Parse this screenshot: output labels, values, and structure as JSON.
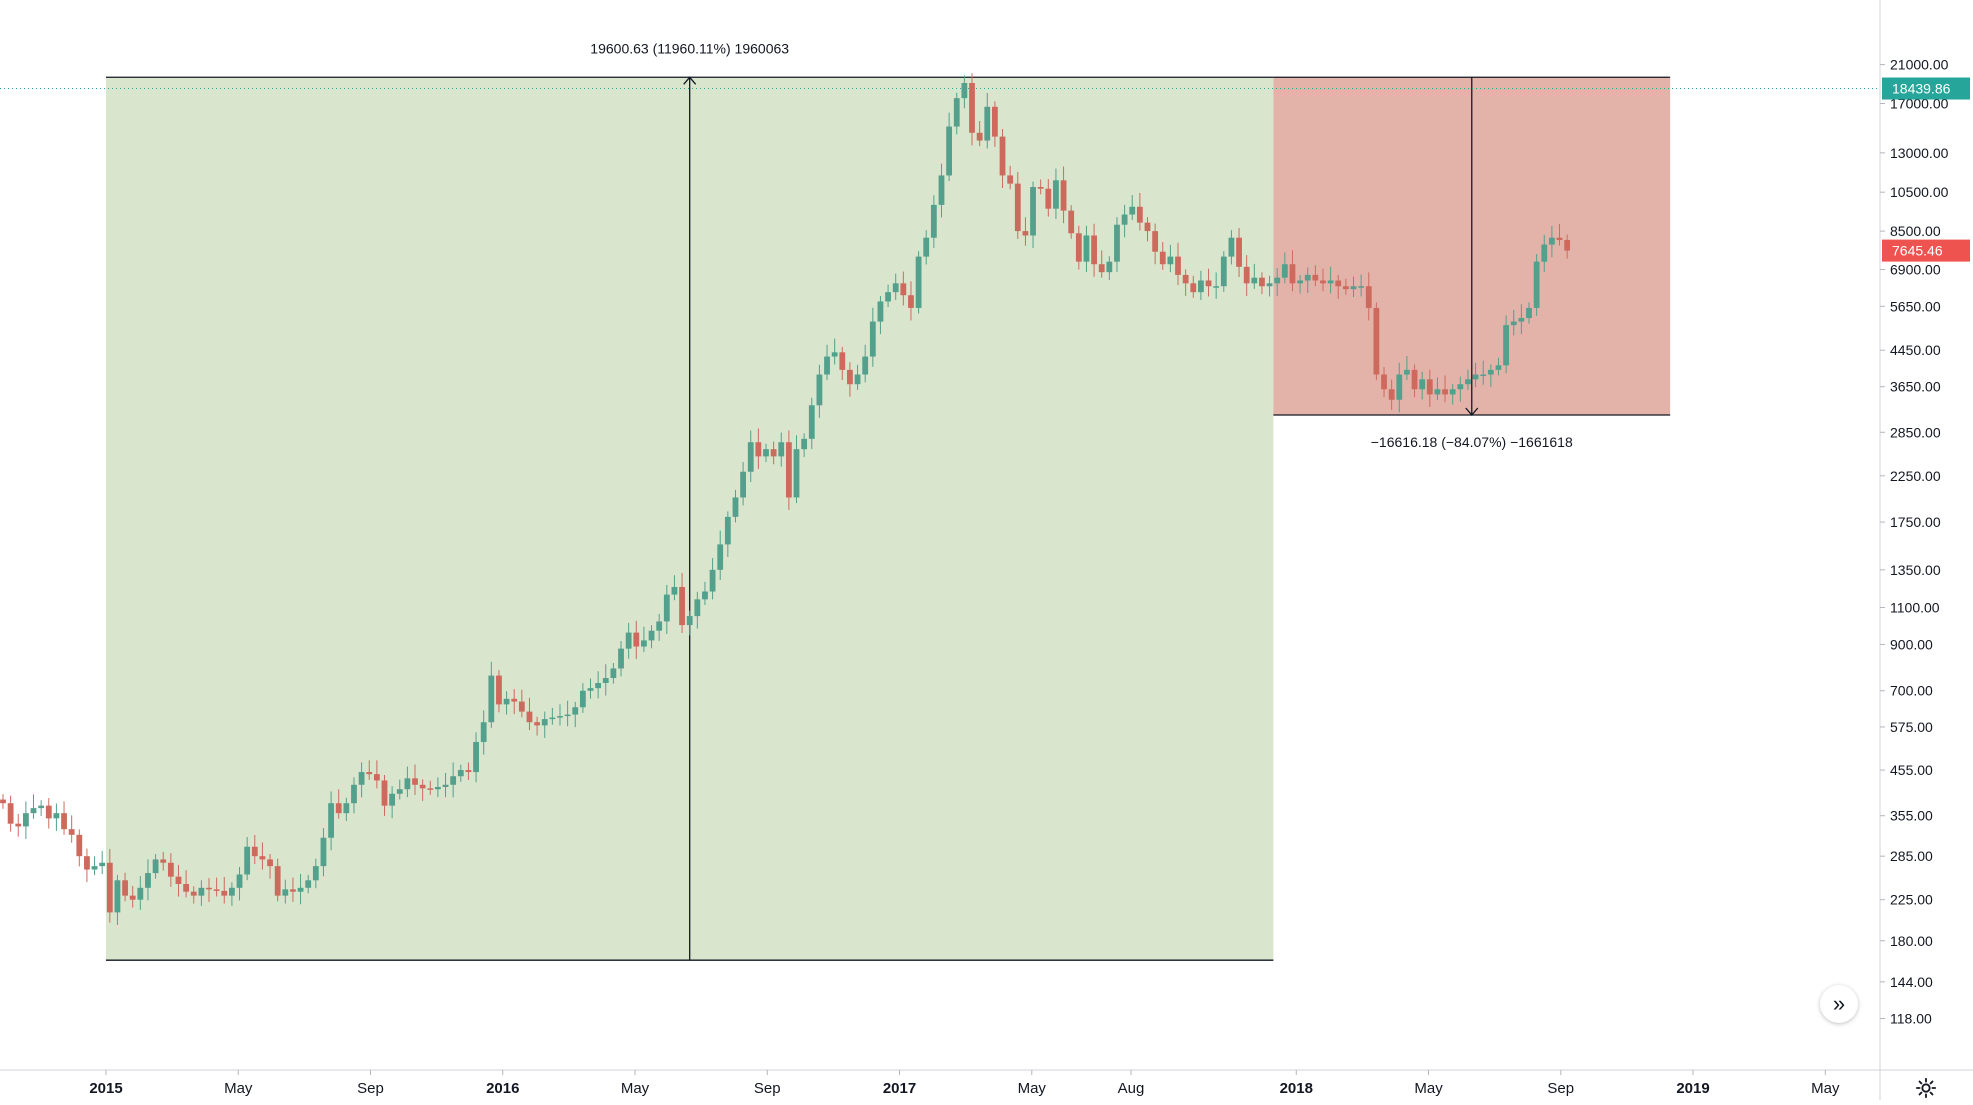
{
  "chart_data": {
    "type": "candlestick",
    "title": "",
    "xlabel": "",
    "ylabel": "",
    "y_scale": "log",
    "ylim": [
      105,
      24000
    ],
    "price_axis_ticks": [
      "21000.00",
      "17000.00",
      "13000.00",
      "10500.00",
      "8500.00",
      "6900.00",
      "5650.00",
      "4450.00",
      "3650.00",
      "2850.00",
      "2250.00",
      "1750.00",
      "1350.00",
      "1100.00",
      "900.00",
      "700.00",
      "575.00",
      "455.00",
      "355.00",
      "285.00",
      "225.00",
      "180.00",
      "144.00",
      "118.00"
    ],
    "time_axis": [
      {
        "label": "2015",
        "month": 0,
        "bold": true
      },
      {
        "label": "May",
        "month": 4,
        "bold": false
      },
      {
        "label": "Sep",
        "month": 8,
        "bold": false
      },
      {
        "label": "2016",
        "month": 12,
        "bold": true
      },
      {
        "label": "May",
        "month": 16,
        "bold": false
      },
      {
        "label": "Sep",
        "month": 20,
        "bold": false
      },
      {
        "label": "2017",
        "month": 24,
        "bold": true
      },
      {
        "label": "May",
        "month": 28,
        "bold": false
      },
      {
        "label": "Aug",
        "month": 31,
        "bold": false
      },
      {
        "label": "2018",
        "month": 36,
        "bold": true
      },
      {
        "label": "May",
        "month": 40,
        "bold": false
      },
      {
        "label": "Sep",
        "month": 44,
        "bold": false
      },
      {
        "label": "2019",
        "month": 48,
        "bold": true
      },
      {
        "label": "May",
        "month": 52,
        "bold": false
      }
    ],
    "current_price_line": {
      "price": 18439.86,
      "label": "18439.86",
      "color": "#26a69a"
    },
    "last_price_badge": {
      "price": 7645.46,
      "label": "7645.46",
      "color": "#ef5350"
    },
    "measurements": [
      {
        "name": "rise",
        "from_week": 0,
        "to_week": 153,
        "low": 162,
        "high": 19600,
        "label": "19600.63 (11960.11%) 1960063",
        "fill": "#d9e6cd",
        "direction": "up"
      },
      {
        "name": "fall",
        "from_week": 153,
        "to_week": 205,
        "low": 3130,
        "high": 19600,
        "label": "−16616.18 (−84.07%) −1661618",
        "fill": "#e3b3aa",
        "direction": "down"
      }
    ],
    "colors": {
      "up": "#53a08d",
      "down": "#ce6a5d",
      "up_bg": "#d9e6cd",
      "down_bg": "#e3b3aa"
    },
    "start_week_offset": -14,
    "weekly_closes": [
      [
        -14,
        380
      ],
      [
        -13,
        340
      ],
      [
        -12,
        335
      ],
      [
        -11,
        360
      ],
      [
        -10,
        370
      ],
      [
        -9,
        375
      ],
      [
        -8,
        350
      ],
      [
        -7,
        360
      ],
      [
        -6,
        330
      ],
      [
        -5,
        320
      ],
      [
        -4,
        285
      ],
      [
        -3,
        265
      ],
      [
        -2,
        270
      ],
      [
        -1,
        275
      ],
      [
        0,
        210
      ],
      [
        1,
        250
      ],
      [
        2,
        230
      ],
      [
        3,
        225
      ],
      [
        4,
        240
      ],
      [
        5,
        260
      ],
      [
        6,
        280
      ],
      [
        7,
        275
      ],
      [
        8,
        255
      ],
      [
        9,
        245
      ],
      [
        10,
        235
      ],
      [
        11,
        230
      ],
      [
        12,
        240
      ],
      [
        13,
        238
      ],
      [
        14,
        236
      ],
      [
        15,
        230
      ],
      [
        16,
        240
      ],
      [
        17,
        258
      ],
      [
        18,
        300
      ],
      [
        19,
        285
      ],
      [
        20,
        280
      ],
      [
        21,
        270
      ],
      [
        22,
        230
      ],
      [
        23,
        238
      ],
      [
        24,
        235
      ],
      [
        25,
        240
      ],
      [
        26,
        250
      ],
      [
        27,
        270
      ],
      [
        28,
        315
      ],
      [
        29,
        380
      ],
      [
        30,
        360
      ],
      [
        31,
        380
      ],
      [
        32,
        420
      ],
      [
        33,
        450
      ],
      [
        34,
        445
      ],
      [
        35,
        430
      ],
      [
        36,
        375
      ],
      [
        37,
        400
      ],
      [
        38,
        410
      ],
      [
        39,
        435
      ],
      [
        40,
        420
      ],
      [
        41,
        412
      ],
      [
        42,
        410
      ],
      [
        43,
        415
      ],
      [
        44,
        420
      ],
      [
        45,
        440
      ],
      [
        46,
        455
      ],
      [
        47,
        450
      ],
      [
        48,
        530
      ],
      [
        49,
        590
      ],
      [
        50,
        760
      ],
      [
        51,
        650
      ],
      [
        52,
        670
      ],
      [
        53,
        660
      ],
      [
        54,
        625
      ],
      [
        55,
        590
      ],
      [
        56,
        580
      ],
      [
        57,
        600
      ],
      [
        58,
        605
      ],
      [
        59,
        610
      ],
      [
        60,
        615
      ],
      [
        61,
        640
      ],
      [
        62,
        700
      ],
      [
        63,
        710
      ],
      [
        64,
        730
      ],
      [
        65,
        750
      ],
      [
        66,
        790
      ],
      [
        67,
        880
      ],
      [
        68,
        960
      ],
      [
        69,
        890
      ],
      [
        70,
        920
      ],
      [
        71,
        970
      ],
      [
        72,
        1020
      ],
      [
        73,
        1180
      ],
      [
        74,
        1230
      ],
      [
        75,
        1000
      ],
      [
        76,
        1050
      ],
      [
        77,
        1150
      ],
      [
        78,
        1200
      ],
      [
        79,
        1350
      ],
      [
        80,
        1550
      ],
      [
        81,
        1800
      ],
      [
        82,
        2000
      ],
      [
        83,
        2300
      ],
      [
        84,
        2700
      ],
      [
        85,
        2500
      ],
      [
        86,
        2600
      ],
      [
        87,
        2500
      ],
      [
        88,
        2700
      ],
      [
        89,
        2000
      ],
      [
        90,
        2600
      ],
      [
        91,
        2750
      ],
      [
        92,
        3300
      ],
      [
        93,
        3900
      ],
      [
        94,
        4300
      ],
      [
        95,
        4400
      ],
      [
        96,
        4000
      ],
      [
        97,
        3700
      ],
      [
        98,
        3900
      ],
      [
        99,
        4300
      ],
      [
        100,
        5200
      ],
      [
        101,
        5800
      ],
      [
        102,
        6100
      ],
      [
        103,
        6400
      ],
      [
        104,
        6000
      ],
      [
        105,
        5600
      ],
      [
        106,
        7400
      ],
      [
        107,
        8200
      ],
      [
        108,
        9800
      ],
      [
        109,
        11500
      ],
      [
        110,
        15000
      ],
      [
        111,
        17500
      ],
      [
        112,
        19000
      ],
      [
        113,
        14500
      ],
      [
        114,
        13900
      ],
      [
        115,
        16700
      ],
      [
        116,
        14200
      ],
      [
        117,
        11500
      ],
      [
        118,
        11000
      ],
      [
        119,
        8500
      ],
      [
        120,
        8300
      ],
      [
        121,
        10800
      ],
      [
        122,
        10700
      ],
      [
        123,
        9600
      ],
      [
        124,
        11200
      ],
      [
        125,
        9500
      ],
      [
        126,
        8400
      ],
      [
        127,
        7200
      ],
      [
        128,
        8300
      ],
      [
        129,
        7100
      ],
      [
        130,
        6800
      ],
      [
        131,
        7200
      ],
      [
        132,
        8800
      ],
      [
        133,
        9300
      ],
      [
        134,
        9700
      ],
      [
        135,
        8900
      ],
      [
        136,
        8500
      ],
      [
        137,
        7600
      ],
      [
        138,
        7100
      ],
      [
        139,
        7400
      ],
      [
        140,
        6700
      ],
      [
        141,
        6400
      ],
      [
        142,
        6100
      ],
      [
        143,
        6500
      ],
      [
        144,
        6300
      ],
      [
        145,
        6300
      ],
      [
        146,
        7400
      ],
      [
        147,
        8200
      ],
      [
        148,
        7000
      ],
      [
        149,
        6400
      ],
      [
        150,
        6600
      ],
      [
        151,
        6300
      ],
      [
        152,
        6400
      ],
      [
        153,
        6600
      ],
      [
        154,
        7100
      ],
      [
        155,
        6400
      ],
      [
        156,
        6500
      ],
      [
        157,
        6700
      ],
      [
        158,
        6500
      ],
      [
        159,
        6400
      ],
      [
        160,
        6500
      ],
      [
        161,
        6300
      ],
      [
        162,
        6200
      ],
      [
        163,
        6300
      ],
      [
        164,
        6300
      ],
      [
        165,
        5600
      ],
      [
        166,
        3900
      ],
      [
        167,
        3600
      ],
      [
        168,
        3400
      ],
      [
        169,
        3900
      ],
      [
        170,
        4000
      ],
      [
        171,
        3600
      ],
      [
        172,
        3800
      ],
      [
        173,
        3500
      ],
      [
        174,
        3600
      ],
      [
        175,
        3500
      ],
      [
        176,
        3600
      ],
      [
        177,
        3700
      ],
      [
        178,
        3800
      ],
      [
        179,
        3900
      ],
      [
        180,
        3900
      ],
      [
        181,
        4000
      ],
      [
        182,
        4100
      ],
      [
        183,
        5100
      ],
      [
        184,
        5200
      ],
      [
        185,
        5300
      ],
      [
        186,
        5600
      ],
      [
        187,
        7200
      ],
      [
        188,
        7900
      ],
      [
        189,
        8200
      ],
      [
        190,
        8100
      ],
      [
        191,
        7645
      ]
    ]
  }
}
